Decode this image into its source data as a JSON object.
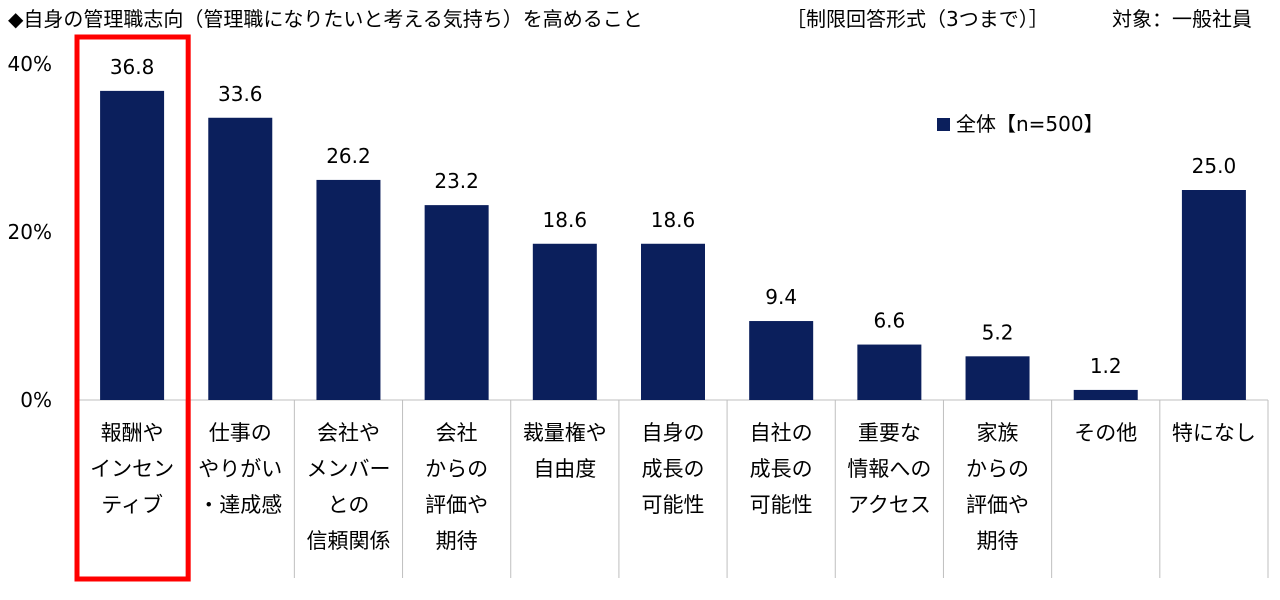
{
  "header": {
    "title": "◆自身の管理職志向（管理職になりたいと考える気持ち）を高めること",
    "format": "［制限回答形式（3つまで）］",
    "target": "対象：一般社員"
  },
  "colors": {
    "bar": "#0b1f5c",
    "highlight_border": "#ff0000",
    "axis": "#bfbfbf"
  },
  "chart_data": {
    "type": "bar",
    "categories": [
      [
        "報酬や",
        "インセン",
        "ティブ"
      ],
      [
        "仕事の",
        "やりがい",
        "・達成感"
      ],
      [
        "会社や",
        "メンバー",
        "との",
        "信頼関係"
      ],
      [
        "会社",
        "からの",
        "評価や",
        "期待"
      ],
      [
        "裁量権や",
        "自由度"
      ],
      [
        "自身の",
        "成長の",
        "可能性"
      ],
      [
        "自社の",
        "成長の",
        "可能性"
      ],
      [
        "重要な",
        "情報への",
        "アクセス"
      ],
      [
        "家族",
        "からの",
        "評価や",
        "期待"
      ],
      [
        "その他"
      ],
      [
        "特になし"
      ]
    ],
    "series": [
      {
        "name": "全体【n=500】",
        "values": [
          36.8,
          33.6,
          26.2,
          23.2,
          18.6,
          18.6,
          9.4,
          6.6,
          5.2,
          1.2,
          25.0
        ]
      }
    ],
    "value_labels": [
      "36.8",
      "33.6",
      "26.2",
      "23.2",
      "18.6",
      "18.6",
      "9.4",
      "6.6",
      "5.2",
      "1.2",
      "25.0"
    ],
    "y_ticks": [
      "0%",
      "20%",
      "40%"
    ],
    "ylim": [
      0,
      40
    ],
    "legend_position": "top-right",
    "highlighted_category_index": 0,
    "grid": false
  }
}
